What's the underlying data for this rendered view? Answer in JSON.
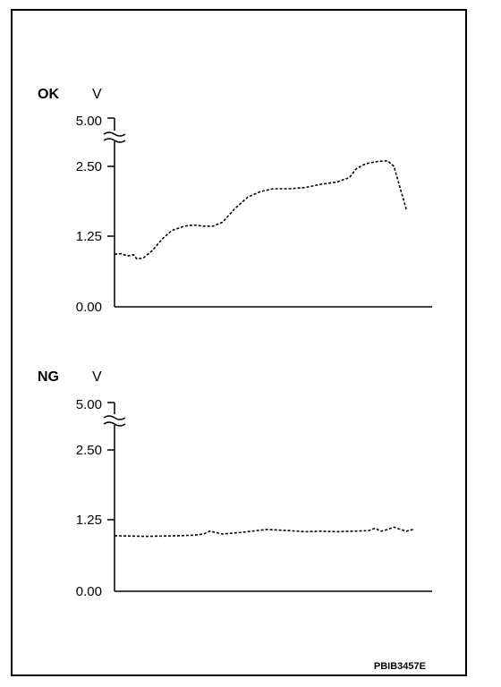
{
  "figure_code": "PBIB3457E",
  "chart_data": [
    {
      "type": "line",
      "title": "OK",
      "ylabel": "V",
      "yticks": [
        "5.00",
        "2.50",
        "1.25",
        "0.00"
      ],
      "axis_break": "between 2.50 and 5.00",
      "ylim": [
        0,
        5
      ],
      "x": [
        0,
        0.02,
        0.04,
        0.06,
        0.07,
        0.09,
        0.12,
        0.15,
        0.18,
        0.22,
        0.25,
        0.28,
        0.31,
        0.34,
        0.38,
        0.42,
        0.46,
        0.5,
        0.55,
        0.6,
        0.65,
        0.7,
        0.74,
        0.76,
        0.78,
        0.8,
        0.83,
        0.86,
        0.88,
        0.89,
        0.9,
        0.91,
        0.92
      ],
      "series": [
        {
          "values": [
            0.93,
            0.94,
            0.9,
            0.92,
            0.85,
            0.86,
            1.0,
            1.2,
            1.35,
            1.43,
            1.45,
            1.43,
            1.43,
            1.5,
            1.75,
            1.95,
            2.05,
            2.1,
            2.1,
            2.12,
            2.18,
            2.22,
            2.3,
            2.45,
            2.52,
            2.56,
            2.59,
            2.6,
            2.5,
            2.3,
            2.1,
            1.9,
            1.7
          ]
        }
      ]
    },
    {
      "type": "line",
      "title": "NG",
      "ylabel": "V",
      "yticks": [
        "5.00",
        "2.50",
        "1.25",
        "0.00"
      ],
      "axis_break": "between 2.50 and 5.00",
      "ylim": [
        0,
        5
      ],
      "x": [
        0,
        0.1,
        0.2,
        0.25,
        0.28,
        0.3,
        0.34,
        0.4,
        0.48,
        0.55,
        0.6,
        0.65,
        0.7,
        0.75,
        0.8,
        0.82,
        0.84,
        0.86,
        0.88,
        0.9,
        0.92,
        0.94
      ],
      "series": [
        {
          "values": [
            0.97,
            0.96,
            0.97,
            0.98,
            1.0,
            1.05,
            1.0,
            1.03,
            1.08,
            1.06,
            1.04,
            1.05,
            1.04,
            1.05,
            1.06,
            1.1,
            1.05,
            1.08,
            1.12,
            1.08,
            1.05,
            1.08
          ]
        }
      ]
    }
  ]
}
